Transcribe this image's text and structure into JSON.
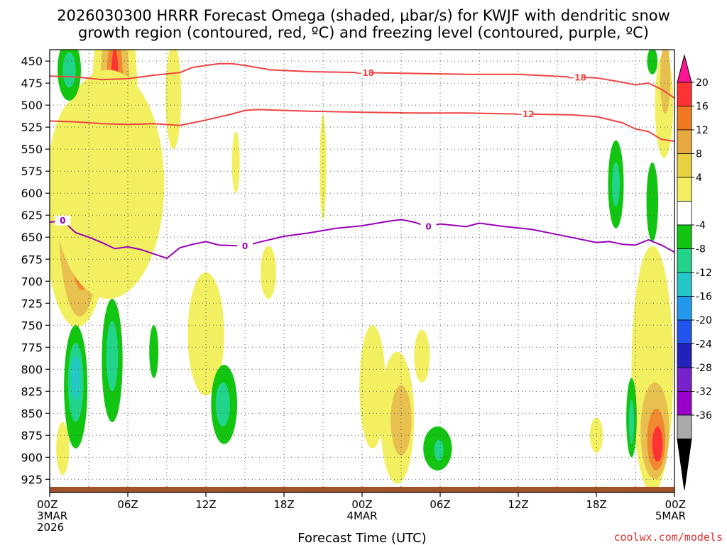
{
  "chart_data": {
    "type": "heatmap",
    "title_lines": [
      "2026030300 HRRR Forecast Omega (shaded, μbar/s) for KWJF with dendritic snow",
      "growth region (contoured, red, ºC) and freezing level (contoured, purple, ºC)"
    ],
    "xlabel": "Forecast Time (UTC)",
    "credit": "coolwx.com/models",
    "x_range_hours": [
      0,
      48
    ],
    "x_ticks": [
      {
        "hour": 0,
        "lines": [
          "00Z",
          "3MAR",
          "2026"
        ]
      },
      {
        "hour": 6,
        "lines": [
          "06Z"
        ]
      },
      {
        "hour": 12,
        "lines": [
          "12Z"
        ]
      },
      {
        "hour": 18,
        "lines": [
          "18Z"
        ]
      },
      {
        "hour": 24,
        "lines": [
          "00Z",
          "4MAR"
        ]
      },
      {
        "hour": 30,
        "lines": [
          "06Z"
        ]
      },
      {
        "hour": 36,
        "lines": [
          "12Z"
        ]
      },
      {
        "hour": 42,
        "lines": [
          "18Z"
        ]
      },
      {
        "hour": 48,
        "lines": [
          "00Z",
          "5MAR"
        ]
      }
    ],
    "y_range_mb": [
      437,
      940
    ],
    "y_ticks": [
      450,
      475,
      500,
      525,
      550,
      575,
      600,
      625,
      650,
      675,
      700,
      725,
      750,
      775,
      800,
      825,
      850,
      875,
      900,
      925
    ],
    "grid": true,
    "colorbar": {
      "labels": [
        "20",
        "16",
        "12",
        "8",
        "4",
        "-4",
        "-8",
        "-12",
        "-16",
        "-20",
        "-24",
        "-28",
        "-32",
        "-36"
      ],
      "colors": [
        "#ff1493",
        "#ff3333",
        "#f07820",
        "#e8a840",
        "#e8d040",
        "#f2f060",
        "#ffffff",
        "#11c511",
        "#22d48a",
        "#22c8c8",
        "#2299ee",
        "#2255ee",
        "#2222bb",
        "#7722cc",
        "#9900cc",
        "#aaaaaa",
        "#000000"
      ]
    },
    "contours": [
      {
        "name": "-18",
        "color": "#ee4444",
        "label": "−18",
        "points": [
          [
            0,
            467
          ],
          [
            2,
            468
          ],
          [
            4,
            471
          ],
          [
            6,
            470
          ],
          [
            8,
            466
          ],
          [
            10,
            463
          ],
          [
            11,
            457
          ],
          [
            12,
            455
          ],
          [
            13,
            453
          ],
          [
            14,
            453
          ],
          [
            15,
            455
          ],
          [
            17,
            460
          ],
          [
            20,
            462
          ],
          [
            24,
            463
          ],
          [
            28,
            464
          ],
          [
            32,
            465
          ],
          [
            36,
            465
          ],
          [
            40,
            468
          ],
          [
            42,
            469
          ],
          [
            44,
            474
          ],
          [
            45,
            477
          ],
          [
            46,
            475
          ],
          [
            47,
            482
          ],
          [
            48,
            492
          ]
        ],
        "label_hours": [
          24.2,
          40.5
        ]
      },
      {
        "name": "-12",
        "color": "#ee4444",
        "label": "−12",
        "points": [
          [
            0,
            518
          ],
          [
            2,
            519
          ],
          [
            4,
            521
          ],
          [
            6,
            522
          ],
          [
            8,
            521
          ],
          [
            10,
            523
          ],
          [
            12,
            517
          ],
          [
            14,
            510
          ],
          [
            15,
            506
          ],
          [
            16,
            505
          ],
          [
            20,
            507
          ],
          [
            24,
            508
          ],
          [
            28,
            509
          ],
          [
            32,
            509
          ],
          [
            36,
            510
          ],
          [
            40,
            511
          ],
          [
            42,
            513
          ],
          [
            44,
            520
          ],
          [
            45,
            527
          ],
          [
            46,
            530
          ],
          [
            47,
            539
          ],
          [
            48,
            541
          ]
        ],
        "label_hours": [
          36.5
        ]
      },
      {
        "name": "0",
        "color": "#9900bb",
        "label": "0",
        "points": [
          [
            0,
            633
          ],
          [
            1,
            631
          ],
          [
            2,
            645
          ],
          [
            3,
            650
          ],
          [
            4,
            656
          ],
          [
            5,
            663
          ],
          [
            6,
            661
          ],
          [
            7,
            664
          ],
          [
            8,
            669
          ],
          [
            9,
            674
          ],
          [
            10,
            662
          ],
          [
            11,
            658
          ],
          [
            12,
            655
          ],
          [
            13,
            659
          ],
          [
            15,
            660
          ],
          [
            16,
            656
          ],
          [
            18,
            649
          ],
          [
            20,
            645
          ],
          [
            22,
            640
          ],
          [
            24,
            637
          ],
          [
            26,
            632
          ],
          [
            27,
            630
          ],
          [
            28,
            633
          ],
          [
            29,
            638
          ],
          [
            30,
            635
          ],
          [
            32,
            638
          ],
          [
            33,
            634
          ],
          [
            35,
            638
          ],
          [
            37,
            641
          ],
          [
            40,
            650
          ],
          [
            42,
            656
          ],
          [
            43,
            655
          ],
          [
            44,
            658
          ],
          [
            45,
            659
          ],
          [
            46,
            653
          ],
          [
            47,
            659
          ],
          [
            48,
            667
          ]
        ],
        "label_hours": [
          1.0,
          15.0,
          29.1
        ]
      }
    ],
    "shading": {
      "positive": [
        {
          "t": 2.1,
          "p": 622,
          "rt": 2.5,
          "rp": 130,
          "level": 4
        },
        {
          "t": 2.3,
          "p": 630,
          "rt": 1.6,
          "rp": 110,
          "level": 8
        },
        {
          "t": 2.5,
          "p": 640,
          "rt": 1.0,
          "rp": 70,
          "level": 12
        },
        {
          "t": 2.6,
          "p": 640,
          "rt": 0.5,
          "rp": 40,
          "level": 16
        },
        {
          "t": 5.0,
          "p": 520,
          "rt": 1.8,
          "rp": 170,
          "level": 4
        },
        {
          "t": 5.0,
          "p": 515,
          "rt": 1.2,
          "rp": 130,
          "level": 8
        },
        {
          "t": 5.0,
          "p": 510,
          "rt": 0.7,
          "rp": 100,
          "level": 12
        },
        {
          "t": 5.0,
          "p": 505,
          "rt": 0.35,
          "rp": 70,
          "level": 16
        },
        {
          "t": 4.5,
          "p": 590,
          "rt": 4.3,
          "rp": 130,
          "level": 4
        },
        {
          "t": 9.5,
          "p": 490,
          "rt": 0.6,
          "rp": 60,
          "level": 4
        },
        {
          "t": 12.0,
          "p": 760,
          "rt": 1.4,
          "rp": 70,
          "level": 4
        },
        {
          "t": 14.3,
          "p": 565,
          "rt": 0.3,
          "rp": 35,
          "level": 4
        },
        {
          "t": 16.8,
          "p": 690,
          "rt": 0.6,
          "rp": 30,
          "level": 4
        },
        {
          "t": 21.0,
          "p": 570,
          "rt": 0.25,
          "rp": 60,
          "level": 4
        },
        {
          "t": 24.8,
          "p": 820,
          "rt": 1.0,
          "rp": 70,
          "level": 4
        },
        {
          "t": 26.7,
          "p": 855,
          "rt": 1.3,
          "rp": 75,
          "level": 4
        },
        {
          "t": 27.0,
          "p": 858,
          "rt": 0.8,
          "rp": 40,
          "level": 8
        },
        {
          "t": 28.6,
          "p": 785,
          "rt": 0.6,
          "rp": 30,
          "level": 4
        },
        {
          "t": 42.0,
          "p": 875,
          "rt": 0.5,
          "rp": 20,
          "level": 4
        },
        {
          "t": 46.3,
          "p": 800,
          "rt": 1.6,
          "rp": 140,
          "level": 4
        },
        {
          "t": 46.5,
          "p": 870,
          "rt": 1.1,
          "rp": 55,
          "level": 8
        },
        {
          "t": 46.6,
          "p": 880,
          "rt": 0.7,
          "rp": 35,
          "level": 12
        },
        {
          "t": 46.7,
          "p": 885,
          "rt": 0.4,
          "rp": 20,
          "level": 16
        },
        {
          "t": 47.2,
          "p": 500,
          "rt": 0.7,
          "rp": 60,
          "level": 4
        },
        {
          "t": 47.3,
          "p": 470,
          "rt": 0.4,
          "rp": 40,
          "level": 8
        },
        {
          "t": 1.0,
          "p": 890,
          "rt": 0.5,
          "rp": 30,
          "level": 4
        }
      ],
      "negative": [
        {
          "t": 1.5,
          "p": 460,
          "rt": 0.9,
          "rp": 35,
          "level": -4
        },
        {
          "t": 1.5,
          "p": 460,
          "rt": 0.5,
          "rp": 20,
          "level": -8
        },
        {
          "t": 2.0,
          "p": 820,
          "rt": 0.9,
          "rp": 70,
          "level": -4
        },
        {
          "t": 2.0,
          "p": 815,
          "rt": 0.6,
          "rp": 45,
          "level": -8
        },
        {
          "t": 2.0,
          "p": 810,
          "rt": 0.35,
          "rp": 25,
          "level": -12
        },
        {
          "t": 4.8,
          "p": 790,
          "rt": 0.8,
          "rp": 70,
          "level": -4
        },
        {
          "t": 4.8,
          "p": 785,
          "rt": 0.45,
          "rp": 40,
          "level": -8
        },
        {
          "t": 8.0,
          "p": 780,
          "rt": 0.35,
          "rp": 30,
          "level": -4
        },
        {
          "t": 13.4,
          "p": 840,
          "rt": 1.0,
          "rp": 45,
          "level": -4
        },
        {
          "t": 13.3,
          "p": 840,
          "rt": 0.55,
          "rp": 25,
          "level": -8
        },
        {
          "t": 29.8,
          "p": 890,
          "rt": 1.1,
          "rp": 25,
          "level": -4
        },
        {
          "t": 29.9,
          "p": 892,
          "rt": 0.35,
          "rp": 12,
          "level": -8
        },
        {
          "t": 43.5,
          "p": 590,
          "rt": 0.6,
          "rp": 50,
          "level": -4
        },
        {
          "t": 43.5,
          "p": 590,
          "rt": 0.3,
          "rp": 25,
          "level": -8
        },
        {
          "t": 46.3,
          "p": 610,
          "rt": 0.45,
          "rp": 45,
          "level": -4
        },
        {
          "t": 44.7,
          "p": 855,
          "rt": 0.4,
          "rp": 45,
          "level": -4
        },
        {
          "t": 44.7,
          "p": 860,
          "rt": 0.2,
          "rp": 25,
          "level": -8
        },
        {
          "t": 46.3,
          "p": 450,
          "rt": 0.4,
          "rp": 15,
          "level": -4
        }
      ]
    }
  }
}
